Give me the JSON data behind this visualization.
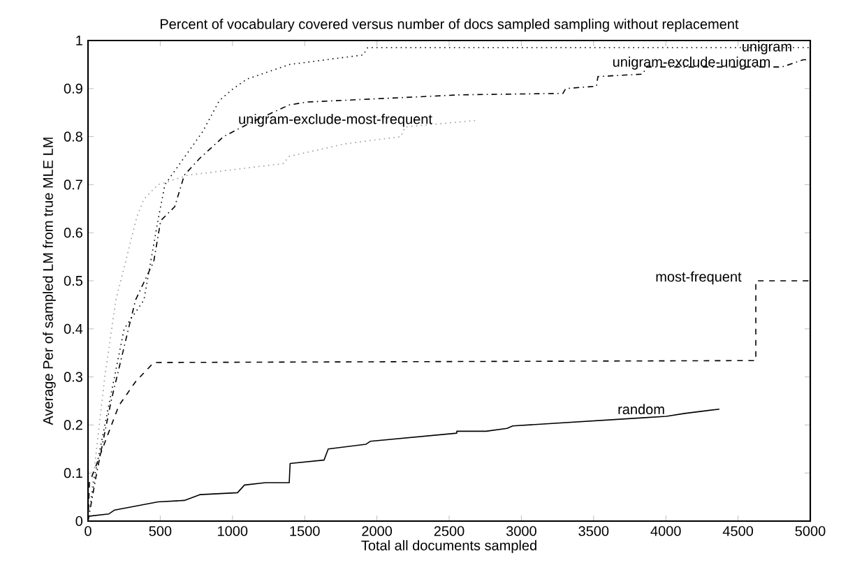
{
  "chart_data": {
    "type": "line",
    "title": "Percent of vocabulary covered versus number of docs sampled sampling without replacement",
    "xlabel": "Total all documents sampled",
    "ylabel": "Average Per of sampled LM from true MLE LM",
    "xlim": [
      0,
      5000
    ],
    "ylim": [
      0,
      1
    ],
    "xticks": [
      0,
      500,
      1000,
      1500,
      2000,
      2500,
      3000,
      3500,
      4000,
      4500,
      5000
    ],
    "yticks": [
      0,
      0.1,
      0.2,
      0.3,
      0.4,
      0.5,
      0.6,
      0.7,
      0.8,
      0.9,
      1
    ],
    "series": [
      {
        "name": "unigram",
        "color": "#000000",
        "line_style": "dotted",
        "x": [
          0,
          50,
          150,
          250,
          387,
          484,
          532,
          793,
          909,
          1006,
          1102,
          1393,
          1905,
          1935,
          5000
        ],
        "values": [
          0,
          0.1,
          0.25,
          0.4,
          0.46,
          0.625,
          0.7,
          0.81,
          0.875,
          0.9,
          0.92,
          0.95,
          0.97,
          0.985,
          0.985
        ]
      },
      {
        "name": "unigram-exclude-unigram",
        "color": "#000000",
        "line_style": "dashdot",
        "x": [
          0,
          60,
          160,
          280,
          329,
          455,
          503,
          600,
          667,
          774,
          938,
          1132,
          1393,
          1518,
          2582,
          3288,
          3307,
          3520,
          3530,
          3839,
          3868,
          4806,
          4952,
          5000
        ],
        "values": [
          0,
          0.1,
          0.25,
          0.4,
          0.46,
          0.54,
          0.625,
          0.654,
          0.72,
          0.755,
          0.8,
          0.83,
          0.866,
          0.872,
          0.887,
          0.89,
          0.9,
          0.905,
          0.925,
          0.93,
          0.945,
          0.945,
          0.96,
          0.96
        ]
      },
      {
        "name": "unigram-exclude-most-frequent",
        "color": "#999999",
        "line_style": "dotted",
        "x": [
          0,
          40,
          116,
          193,
          339,
          387,
          484,
          696,
          1354,
          1393,
          1780,
          2166,
          2195,
          2553,
          2698
        ],
        "values": [
          0,
          0.1,
          0.3,
          0.46,
          0.634,
          0.67,
          0.7,
          0.72,
          0.744,
          0.759,
          0.785,
          0.8,
          0.82,
          0.83,
          0.834
        ]
      },
      {
        "name": "most-frequent",
        "color": "#000000",
        "line_style": "dashed",
        "x": [
          0,
          10,
          68,
          213,
          329,
          455,
          4623,
          4623,
          5000
        ],
        "values": [
          0,
          0.08,
          0.125,
          0.24,
          0.29,
          0.33,
          0.334,
          0.5,
          0.5
        ]
      },
      {
        "name": "random",
        "color": "#000000",
        "line_style": "solid",
        "x": [
          0,
          145,
          184,
          484,
          667,
          774,
          1035,
          1083,
          1228,
          1393,
          1399,
          1634,
          1663,
          1925,
          1954,
          2553,
          2553,
          2756,
          2901,
          2940,
          3839,
          4004,
          4130,
          4371
        ],
        "values": [
          0.01,
          0.015,
          0.023,
          0.04,
          0.043,
          0.055,
          0.059,
          0.075,
          0.08,
          0.08,
          0.12,
          0.127,
          0.15,
          0.16,
          0.166,
          0.183,
          0.187,
          0.187,
          0.193,
          0.198,
          0.215,
          0.218,
          0.224,
          0.233
        ]
      }
    ]
  }
}
